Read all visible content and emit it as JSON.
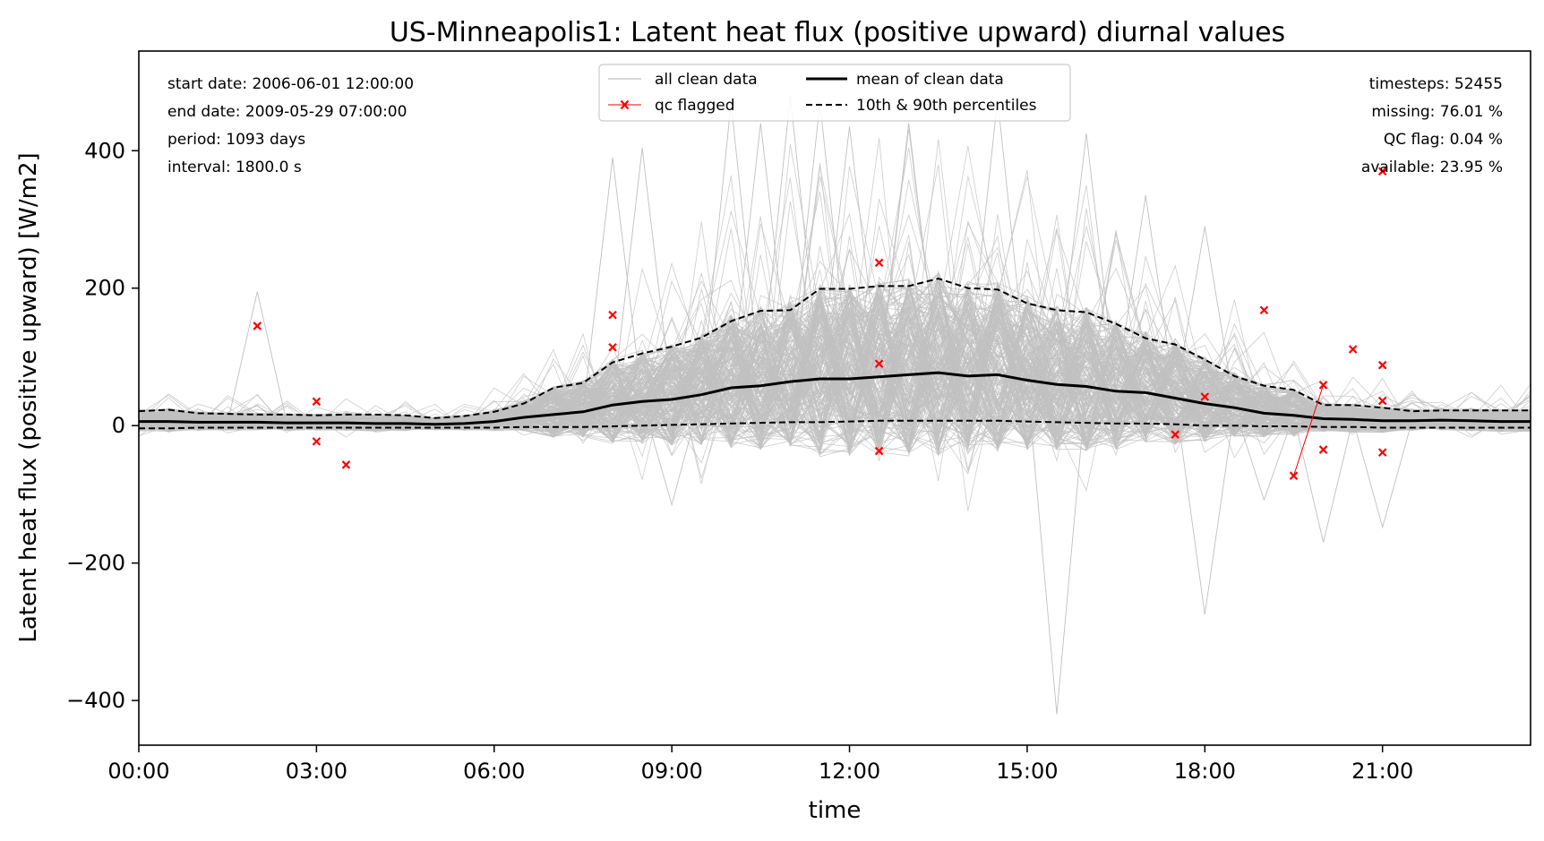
{
  "chart_data": {
    "type": "line",
    "title": "US-Minneapolis1: Latent heat flux (positive upward) diurnal values",
    "xlabel": "time",
    "ylabel": "Latent heat flux (positive upward) [W/m2]",
    "xlim": [
      0,
      23.5
    ],
    "ylim": [
      -465,
      545
    ],
    "x_ticks": [
      0,
      3,
      6,
      9,
      12,
      15,
      18,
      21
    ],
    "x_tick_labels": [
      "00:00",
      "03:00",
      "06:00",
      "09:00",
      "12:00",
      "15:00",
      "18:00",
      "21:00"
    ],
    "y_ticks": [
      -400,
      -200,
      0,
      200,
      400
    ],
    "y_tick_labels": [
      "−400",
      "−200",
      "0",
      "200",
      "400"
    ],
    "grid": false,
    "legend_placement": "top-center",
    "legend": [
      {
        "label": "all clean data",
        "style": "thin-gray-line"
      },
      {
        "label": "mean of clean data",
        "style": "thick-black-line"
      },
      {
        "label": "qc flagged",
        "style": "red-x-marker"
      },
      {
        "label": "10th & 90th percentiles",
        "style": "dashed-black-line"
      }
    ],
    "colors": {
      "clean": "#c0c0c0",
      "mean": "#000000",
      "percentile": "#000000",
      "flagged": "#ff0000"
    },
    "info_left": [
      "start date: 2006-06-01 12:00:00",
      "end date: 2009-05-29 07:00:00",
      "period: 1093 days",
      "interval: 1800.0 s"
    ],
    "info_right": [
      "timesteps: 52455",
      "missing: 76.01 %",
      "QC flag: 0.04 %",
      "available: 23.95 %"
    ],
    "hours": [
      0,
      0.5,
      1,
      1.5,
      2,
      2.5,
      3,
      3.5,
      4,
      4.5,
      5,
      5.5,
      6,
      6.5,
      7,
      7.5,
      8,
      8.5,
      9,
      9.5,
      10,
      10.5,
      11,
      11.5,
      12,
      12.5,
      13,
      13.5,
      14,
      14.5,
      15,
      15.5,
      16,
      16.5,
      17,
      17.5,
      18,
      18.5,
      19,
      19.5,
      20,
      20.5,
      21,
      21.5,
      22,
      22.5,
      23,
      23.5
    ],
    "series": [
      {
        "name": "mean of clean data",
        "values": [
          6,
          6,
          5,
          5,
          5,
          4,
          4,
          4,
          3,
          3,
          2,
          3,
          6,
          12,
          16,
          20,
          30,
          35,
          38,
          45,
          55,
          58,
          64,
          68,
          68,
          71,
          74,
          77,
          72,
          74,
          66,
          60,
          57,
          50,
          48,
          40,
          32,
          26,
          18,
          15,
          10,
          9,
          7,
          7,
          8,
          7,
          6,
          6
        ]
      },
      {
        "name": "10th & 90th percentiles",
        "values": [
          21,
          23,
          18,
          17,
          16,
          16,
          15,
          16,
          16,
          15,
          11,
          14,
          20,
          32,
          55,
          62,
          92,
          105,
          115,
          128,
          152,
          167,
          168,
          199,
          199,
          203,
          203,
          214,
          200,
          198,
          178,
          168,
          165,
          148,
          127,
          118,
          96,
          72,
          58,
          52,
          30,
          30,
          26,
          21,
          22,
          22,
          22,
          22
        ]
      },
      {
        "name": "10th & 90th percentiles",
        "values": [
          -4,
          -4,
          -3,
          -3,
          -3,
          -3,
          -3,
          -3,
          -3,
          -3,
          -3,
          -3,
          -3,
          -2,
          -2,
          -2,
          -1,
          0,
          1,
          2,
          3,
          4,
          5,
          5,
          6,
          7,
          7,
          7,
          7,
          7,
          6,
          5,
          4,
          3,
          3,
          2,
          0,
          0,
          -1,
          -1,
          -2,
          -2,
          -3,
          -3,
          -3,
          -3,
          -3,
          -3
        ]
      }
    ],
    "qc_flagged_points": [
      {
        "x": 2.0,
        "y": 145
      },
      {
        "x": 3.0,
        "y": 35
      },
      {
        "x": 3.0,
        "y": -23
      },
      {
        "x": 3.5,
        "y": -57
      },
      {
        "x": 8.0,
        "y": 161
      },
      {
        "x": 8.0,
        "y": 114
      },
      {
        "x": 12.5,
        "y": 237
      },
      {
        "x": 12.5,
        "y": 90
      },
      {
        "x": 12.5,
        "y": -37
      },
      {
        "x": 17.5,
        "y": -13
      },
      {
        "x": 18.0,
        "y": 42
      },
      {
        "x": 19.0,
        "y": 168
      },
      {
        "x": 19.5,
        "y": -73
      },
      {
        "x": 20.0,
        "y": 59
      },
      {
        "x": 20.0,
        "y": -35
      },
      {
        "x": 20.5,
        "y": 111
      },
      {
        "x": 21.0,
        "y": 370
      },
      {
        "x": 21.0,
        "y": 88
      },
      {
        "x": 21.0,
        "y": 36
      },
      {
        "x": 21.0,
        "y": -39
      }
    ],
    "qc_flagged_segment": [
      {
        "x": 19.5,
        "y": -73
      },
      {
        "x": 20.0,
        "y": 59
      }
    ],
    "clean_data_spikes": [
      {
        "x": 2.0,
        "y": 195
      },
      {
        "x": 8.0,
        "y": 390
      },
      {
        "x": 8.5,
        "y": 404
      },
      {
        "x": 9.0,
        "y": -115
      },
      {
        "x": 10.0,
        "y": 470
      },
      {
        "x": 10.5,
        "y": 440
      },
      {
        "x": 11.0,
        "y": 480
      },
      {
        "x": 11.5,
        "y": 470
      },
      {
        "x": 12.0,
        "y": 435
      },
      {
        "x": 13.0,
        "y": 440
      },
      {
        "x": 14.5,
        "y": 475
      },
      {
        "x": 15.5,
        "y": -420
      },
      {
        "x": 16.0,
        "y": 425
      },
      {
        "x": 17.0,
        "y": 335
      },
      {
        "x": 18.0,
        "y": -275
      },
      {
        "x": 18.0,
        "y": 290
      },
      {
        "x": 19.0,
        "y": -108
      },
      {
        "x": 20.0,
        "y": -170
      },
      {
        "x": 21.0,
        "y": -148
      }
    ]
  }
}
